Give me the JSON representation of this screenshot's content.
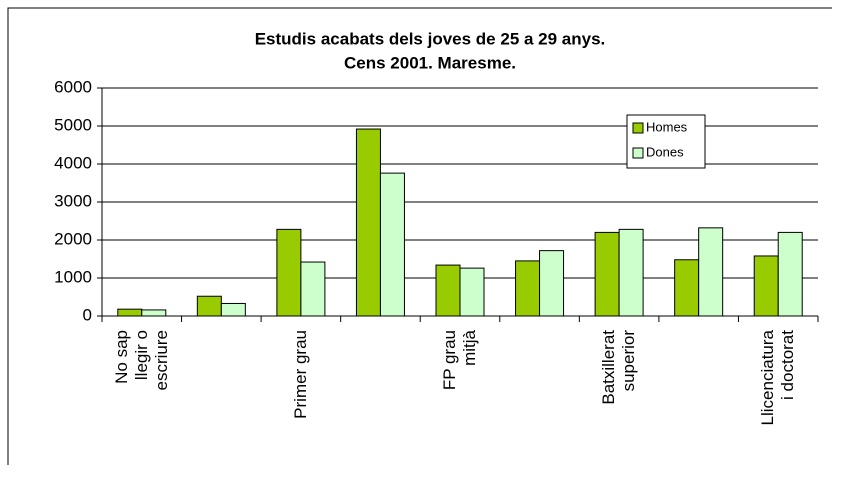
{
  "chart_data": {
    "type": "bar",
    "title": "Estudis acabats dels joves de 25 a 29 anys.",
    "subtitle": "Cens 2001. Maresme.",
    "categories": [
      "No sap\nllegir o\nescriure",
      null,
      "Primer grau",
      null,
      "FP grau\nmitjà",
      null,
      "Batxillerat\nsuperior",
      null,
      "Llicenciatura\ni doctorat"
    ],
    "series": [
      {
        "name": "Homes",
        "color": "#99cc00",
        "values": [
          180,
          520,
          2280,
          4920,
          1340,
          1450,
          2200,
          1480,
          1580
        ]
      },
      {
        "name": "Dones",
        "color": "#ccffcc",
        "values": [
          160,
          330,
          1420,
          3760,
          1260,
          1720,
          2280,
          2320,
          2200
        ]
      }
    ],
    "ylim": [
      0,
      6000
    ],
    "yticks": [
      0,
      1000,
      2000,
      3000,
      4000,
      5000,
      6000
    ],
    "grid": true,
    "legend": "right"
  }
}
